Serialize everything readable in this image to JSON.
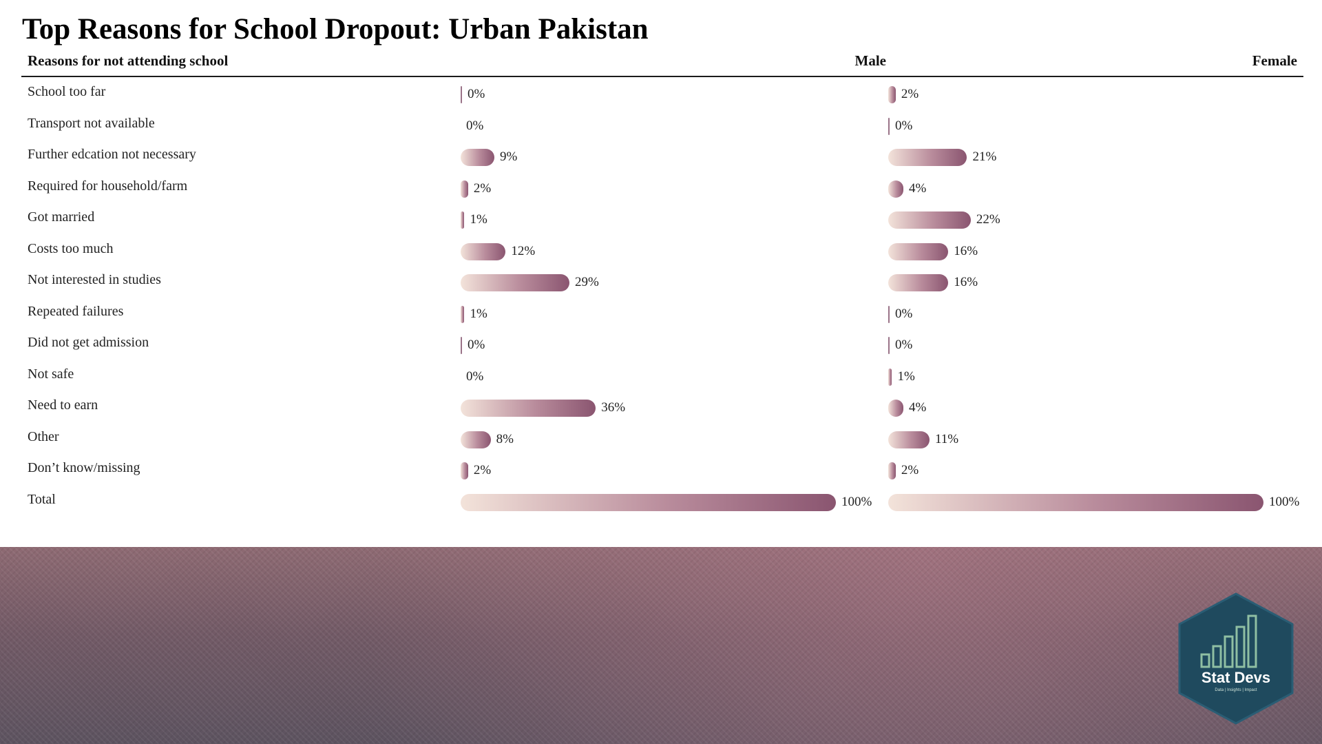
{
  "title": "Top Reasons for School Dropout: Urban Pakistan",
  "table": {
    "header": {
      "reason": "Reasons for not attending school",
      "male": "Male",
      "female": "Female"
    }
  },
  "colors": {
    "bar_start": "#f3e3da",
    "bar_end": "#8a5570",
    "banner": "#7a5e69",
    "logo_fill": "#1f4a5e",
    "logo_bars": "#8fbfa3"
  },
  "chart_data": {
    "type": "table",
    "columns": [
      "Reasons for not attending school",
      "Male",
      "Female"
    ],
    "categories": [
      "School too far",
      "Transport not available",
      "Further edcation not necessary",
      "Required for household/farm",
      "Got married",
      "Costs too much",
      "Not interested in studies",
      "Repeated failures",
      "Did not get admission",
      "Not safe",
      "Need to earn",
      "Other",
      "Don’t know/missing",
      "Total"
    ],
    "series": [
      {
        "name": "Male",
        "values": [
          0.2,
          0,
          9,
          2,
          1,
          12,
          29,
          1,
          0.2,
          0,
          36,
          8,
          2,
          100
        ],
        "labels": [
          "0%",
          "0%",
          "9%",
          "2%",
          "1%",
          "12%",
          "29%",
          "1%",
          "0%",
          "0%",
          "36%",
          "8%",
          "2%",
          "100%"
        ]
      },
      {
        "name": "Female",
        "values": [
          2,
          0.2,
          21,
          4,
          22,
          16,
          16,
          0.2,
          0.2,
          1,
          4,
          11,
          2,
          100
        ],
        "labels": [
          "2%",
          "0%",
          "21%",
          "4%",
          "22%",
          "16%",
          "16%",
          "0%",
          "0%",
          "1%",
          "4%",
          "11%",
          "2%",
          "100%"
        ]
      }
    ],
    "unit": "%",
    "xlim": [
      0,
      100
    ]
  },
  "logo": {
    "name": "Stat Devs",
    "tagline": "Data | Insights | Impact"
  }
}
